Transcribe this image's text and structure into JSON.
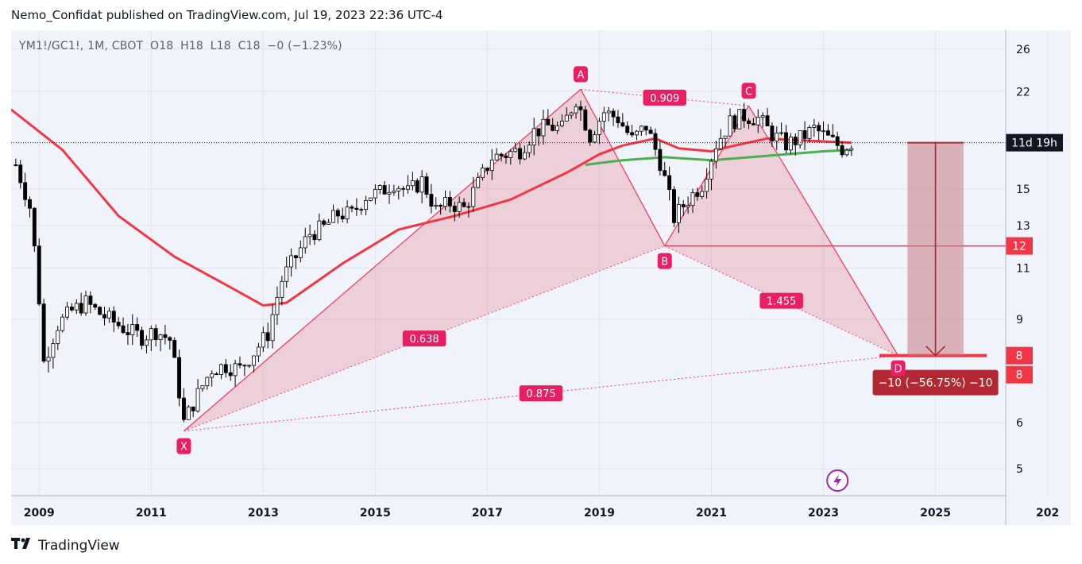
{
  "header": {
    "published_line": "Nemo_Confidat published on TradingView.com, Jul 19, 2023 22:36 UTC-4"
  },
  "legend": {
    "symbol": "YM1!/GC1!, 1M, CBOT",
    "o_label": "O",
    "o_value": "18",
    "h_label": "H",
    "h_value": "18",
    "l_label": "L",
    "l_value": "18",
    "c_label": "C",
    "c_value": "18",
    "change": "−0 (−1.23%)"
  },
  "footer": {
    "brand": "TradingView"
  },
  "colors": {
    "pattern_fill": "#e57385",
    "pattern_line": "#f23f5d",
    "label_bg": "#e91e63",
    "ma_red": "#f23645",
    "ma_green": "#4caf50",
    "price_red": "#f23645",
    "countdown_bg": "#131722",
    "measure_fill": "#c97a84",
    "measure_box": "#b22833",
    "candle_up": "#ffffff",
    "candle_down": "#000000",
    "grid": "#e0e3eb",
    "panel": "#f0f3fa"
  },
  "icons": {
    "brand_logo": "tradingview-logo-icon",
    "indicator": "lightning-icon"
  },
  "chart_data": {
    "type": "candlestick",
    "x_axis": {
      "type": "time",
      "range": [
        "2008-07",
        "2027-06"
      ],
      "tick_labels": [
        "2009",
        "2011",
        "2013",
        "2015",
        "2017",
        "2019",
        "2021",
        "2023",
        "2025",
        "202"
      ]
    },
    "y_axis": {
      "scale": "log",
      "range": [
        4.5,
        28
      ],
      "tick_labels": [
        "26",
        "22",
        "15",
        "13",
        "11",
        "9",
        "6",
        "5"
      ]
    },
    "series": [
      {
        "kind": "close",
        "points": [
          [
            "2008-08",
            16.5
          ],
          [
            "2008-11",
            14.0
          ],
          [
            "2009-02",
            7.6
          ],
          [
            "2009-05",
            8.8
          ],
          [
            "2009-08",
            9.3
          ],
          [
            "2009-11",
            9.6
          ],
          [
            "2010-02",
            9.2
          ],
          [
            "2010-05",
            8.9
          ],
          [
            "2010-08",
            8.6
          ],
          [
            "2010-11",
            8.4
          ],
          [
            "2011-02",
            8.6
          ],
          [
            "2011-05",
            8.3
          ],
          [
            "2011-08",
            6.0
          ],
          [
            "2011-11",
            6.7
          ],
          [
            "2012-02",
            7.4
          ],
          [
            "2012-05",
            7.5
          ],
          [
            "2012-08",
            7.4
          ],
          [
            "2012-11",
            7.9
          ],
          [
            "2013-02",
            8.5
          ],
          [
            "2013-05",
            10.5
          ],
          [
            "2013-08",
            11.5
          ],
          [
            "2013-11",
            12.6
          ],
          [
            "2014-02",
            12.9
          ],
          [
            "2014-05",
            13.6
          ],
          [
            "2014-08",
            13.6
          ],
          [
            "2014-11",
            14.6
          ],
          [
            "2015-02",
            14.8
          ],
          [
            "2015-05",
            15.4
          ],
          [
            "2015-08",
            14.8
          ],
          [
            "2015-11",
            15.5
          ],
          [
            "2016-02",
            13.8
          ],
          [
            "2016-05",
            14.2
          ],
          [
            "2016-08",
            13.9
          ],
          [
            "2016-11",
            15.3
          ],
          [
            "2017-02",
            17.0
          ],
          [
            "2017-05",
            17.2
          ],
          [
            "2017-08",
            17.5
          ],
          [
            "2017-11",
            18.8
          ],
          [
            "2018-02",
            19.2
          ],
          [
            "2018-05",
            19.0
          ],
          [
            "2018-08",
            21.4
          ],
          [
            "2018-11",
            18.5
          ],
          [
            "2019-02",
            20.3
          ],
          [
            "2019-05",
            19.8
          ],
          [
            "2019-08",
            18.2
          ],
          [
            "2019-11",
            19.2
          ],
          [
            "2020-02",
            16.7
          ],
          [
            "2020-05",
            13.4
          ],
          [
            "2020-08",
            14.4
          ],
          [
            "2020-11",
            15.3
          ],
          [
            "2021-02",
            17.9
          ],
          [
            "2021-05",
            19.5
          ],
          [
            "2021-08",
            20.0
          ],
          [
            "2021-11",
            19.8
          ],
          [
            "2022-02",
            18.6
          ],
          [
            "2022-05",
            17.9
          ],
          [
            "2022-08",
            18.3
          ],
          [
            "2022-11",
            19.0
          ],
          [
            "2023-02",
            18.3
          ],
          [
            "2023-05",
            17.6
          ],
          [
            "2023-07",
            18.0
          ]
        ]
      },
      {
        "kind": "moving_average",
        "color": "red",
        "points": [
          [
            "2008-07",
            20.5
          ],
          [
            "2009-06",
            17.5
          ],
          [
            "2010-06",
            13.5
          ],
          [
            "2011-06",
            11.5
          ],
          [
            "2012-06",
            10.2
          ],
          [
            "2013-01",
            9.5
          ],
          [
            "2013-06",
            9.6
          ],
          [
            "2014-06",
            11.2
          ],
          [
            "2015-06",
            12.8
          ],
          [
            "2016-06",
            13.5
          ],
          [
            "2017-06",
            14.4
          ],
          [
            "2018-06",
            16.0
          ],
          [
            "2019-01",
            17.2
          ],
          [
            "2019-06",
            17.8
          ],
          [
            "2020-01",
            18.3
          ],
          [
            "2020-06",
            17.6
          ],
          [
            "2021-01",
            17.4
          ],
          [
            "2021-06",
            17.8
          ],
          [
            "2022-01",
            18.3
          ],
          [
            "2022-06",
            18.2
          ],
          [
            "2023-07",
            18.0
          ]
        ]
      },
      {
        "kind": "moving_average",
        "color": "green",
        "points": [
          [
            "2018-10",
            16.5
          ],
          [
            "2019-06",
            16.8
          ],
          [
            "2020-03",
            17.0
          ],
          [
            "2021-01",
            16.8
          ],
          [
            "2022-01",
            17.1
          ],
          [
            "2023-01",
            17.4
          ],
          [
            "2023-07",
            17.5
          ]
        ]
      }
    ],
    "harmonic_pattern": {
      "points": [
        {
          "label": "X",
          "date": "2011-08",
          "value": 5.8
        },
        {
          "label": "A",
          "date": "2018-09",
          "value": 22.2
        },
        {
          "label": "B",
          "date": "2020-03",
          "value": 12.0
        },
        {
          "label": "C",
          "date": "2021-09",
          "value": 20.8
        },
        {
          "label": "D",
          "date": "2024-05",
          "value": 7.8
        }
      ],
      "ratios": [
        {
          "between": "A-C",
          "value": "0.909"
        },
        {
          "between": "X-B",
          "value": "0.638"
        },
        {
          "between": "B-D",
          "value": "1.455"
        },
        {
          "between": "X-D",
          "value": "0.875"
        }
      ]
    },
    "horizontal_lines": [
      {
        "value": 12.0,
        "label": "12",
        "from": "2020-03"
      },
      {
        "value": 7.8,
        "label": "8",
        "from": "2024-01",
        "to": "2025-12"
      }
    ],
    "price_labels": [
      {
        "value": 18.0,
        "label": "11d 19h",
        "style": "countdown"
      },
      {
        "value": 12.0,
        "label": "12"
      },
      {
        "value": 7.8,
        "label": "8"
      },
      {
        "value": 7.4,
        "label": "8"
      }
    ],
    "measure": {
      "from_date": "2024-07",
      "to_date": "2025-07",
      "top": 18.0,
      "bottom": 7.8,
      "label": "−10 (−56.75%) −10"
    }
  }
}
